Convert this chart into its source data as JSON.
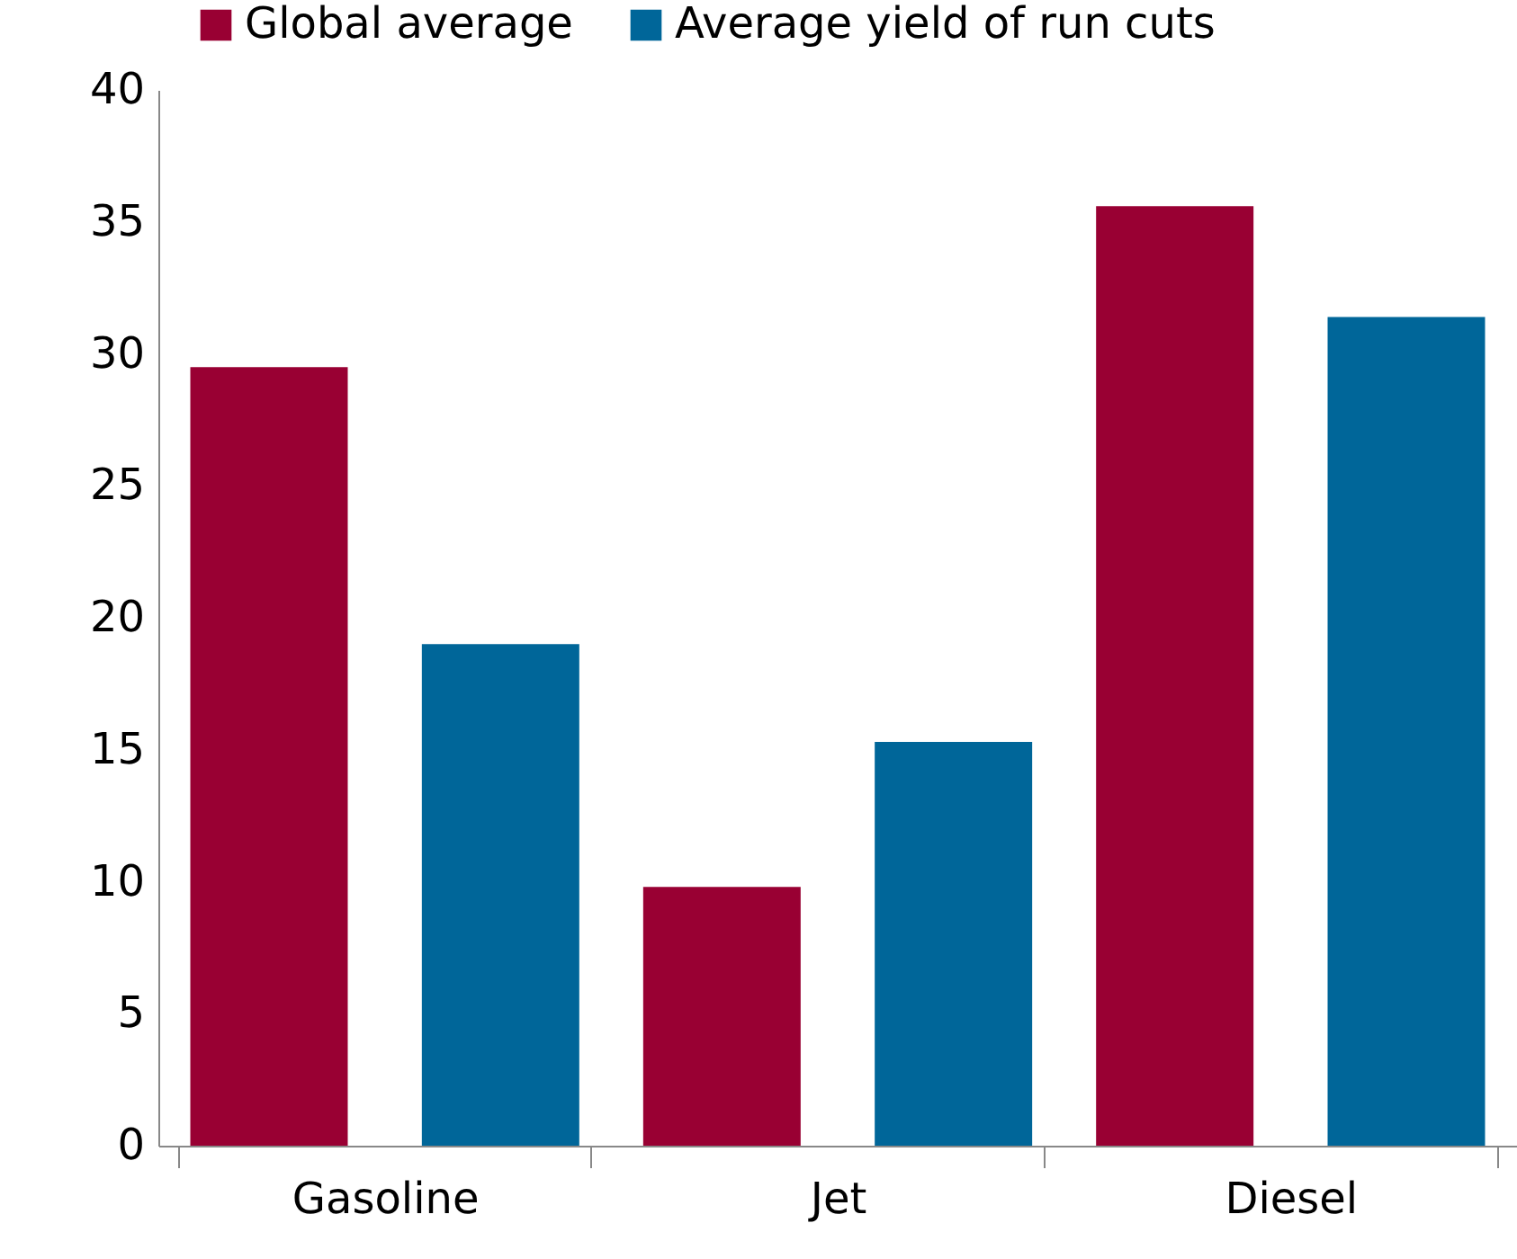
{
  "chart_data": {
    "type": "bar",
    "categories": [
      "Gasoline",
      "Jet",
      "Diesel"
    ],
    "series": [
      {
        "name": "Global average",
        "color": "#990033",
        "values": [
          29.5,
          9.8,
          35.6
        ]
      },
      {
        "name": "Average yield of run cuts",
        "color": "#006699",
        "values": [
          19.0,
          15.3,
          31.4
        ]
      }
    ],
    "ylim": [
      0,
      40
    ],
    "yticks": [
      0,
      5,
      10,
      15,
      20,
      25,
      30,
      35,
      40
    ],
    "grid": false,
    "legend": "top"
  }
}
